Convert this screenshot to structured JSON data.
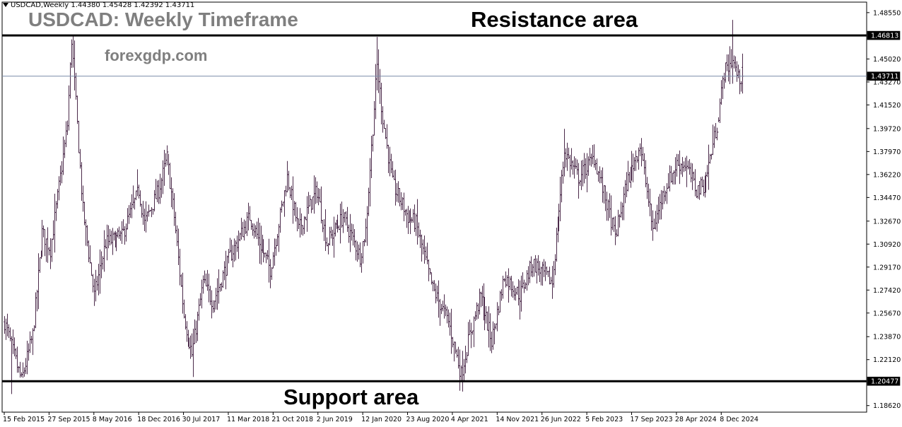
{
  "header": {
    "symbol_info": "USDCAD,Weekly  1.44380 1.45428 1.42392 1.43711",
    "title": "USDCAD: Weekly Timeframe",
    "watermark": "forexgdp.com"
  },
  "annotations": {
    "resistance_label": "Resistance area",
    "support_label": "Support area"
  },
  "colors": {
    "background": "#ffffff",
    "bar": "#4b2a4a",
    "level_line": "#000000",
    "current_price_line": "#7a8aa8"
  },
  "chart_data": {
    "type": "ohlc",
    "title": "USDCAD: Weekly Timeframe",
    "grid": false,
    "y_axis": {
      "ticks": [
        "1.48550",
        "1.45020",
        "1.43270",
        "1.41520",
        "1.39720",
        "1.37970",
        "1.36220",
        "1.34470",
        "1.32670",
        "1.30920",
        "1.29170",
        "1.27420",
        "1.25670",
        "1.23870",
        "1.22120",
        "1.18620"
      ],
      "range": [
        1.1812,
        1.4935
      ]
    },
    "x_axis": {
      "ticks": [
        "15 Feb 2015",
        "27 Sep 2015",
        "8 May 2016",
        "18 Dec 2016",
        "30 Jul 2017",
        "11 Mar 2018",
        "21 Oct 2018",
        "2 Jun 2019",
        "12 Jan 2020",
        "23 Aug 2020",
        "4 Apr 2021",
        "14 Nov 2021",
        "26 Jun 2022",
        "5 Feb 2023",
        "17 Sep 2023",
        "28 Apr 2024",
        "8 Dec 2024"
      ],
      "range": [
        "2015-02-15",
        "2025-03-23"
      ]
    },
    "levels": [
      {
        "price": 1.46813,
        "label": "1.46813",
        "name": "Resistance area"
      },
      {
        "price": 1.20477,
        "label": "1.20477",
        "name": "Support area"
      }
    ],
    "current_price": {
      "price": 1.43711,
      "label": "1.43711"
    },
    "last_bar": {
      "open": 1.4438,
      "high": 1.45428,
      "low": 1.42392,
      "close": 1.43711
    },
    "anchors": [
      [
        "2015-02-15",
        1.25
      ],
      [
        "2015-03-15",
        1.235
      ],
      [
        "2015-05-10",
        1.205
      ],
      [
        "2015-07-05",
        1.24
      ],
      [
        "2015-08-23",
        1.318
      ],
      [
        "2015-10-04",
        1.305
      ],
      [
        "2015-12-27",
        1.4
      ],
      [
        "2016-01-17",
        1.465
      ],
      [
        "2016-03-13",
        1.335
      ],
      [
        "2016-05-08",
        1.27
      ],
      [
        "2016-07-03",
        1.31
      ],
      [
        "2016-09-25",
        1.315
      ],
      [
        "2016-12-18",
        1.35
      ],
      [
        "2017-01-15",
        1.325
      ],
      [
        "2017-03-26",
        1.35
      ],
      [
        "2017-05-07",
        1.375
      ],
      [
        "2017-06-11",
        1.33
      ],
      [
        "2017-07-30",
        1.255
      ],
      [
        "2017-09-10",
        1.225
      ],
      [
        "2017-11-05",
        1.28
      ],
      [
        "2017-12-24",
        1.265
      ],
      [
        "2018-03-18",
        1.3
      ],
      [
        "2018-06-24",
        1.33
      ],
      [
        "2018-08-26",
        1.305
      ],
      [
        "2018-10-07",
        1.29
      ],
      [
        "2018-12-30",
        1.36
      ],
      [
        "2019-02-24",
        1.32
      ],
      [
        "2019-05-26",
        1.35
      ],
      [
        "2019-07-14",
        1.31
      ],
      [
        "2019-10-06",
        1.33
      ],
      [
        "2019-12-29",
        1.3
      ],
      [
        "2020-01-26",
        1.32
      ],
      [
        "2020-03-22",
        1.445
      ],
      [
        "2020-04-19",
        1.405
      ],
      [
        "2020-06-07",
        1.355
      ],
      [
        "2020-08-23",
        1.33
      ],
      [
        "2020-10-04",
        1.325
      ],
      [
        "2020-12-27",
        1.275
      ],
      [
        "2021-03-14",
        1.25
      ],
      [
        "2021-05-16",
        1.21
      ],
      [
        "2021-06-27",
        1.24
      ],
      [
        "2021-08-22",
        1.27
      ],
      [
        "2021-10-17",
        1.235
      ],
      [
        "2021-12-19",
        1.285
      ],
      [
        "2022-03-06",
        1.27
      ],
      [
        "2022-05-08",
        1.295
      ],
      [
        "2022-08-14",
        1.28
      ],
      [
        "2022-10-16",
        1.38
      ],
      [
        "2022-12-25",
        1.36
      ],
      [
        "2023-03-12",
        1.375
      ],
      [
        "2023-05-14",
        1.34
      ],
      [
        "2023-06-25",
        1.315
      ],
      [
        "2023-08-20",
        1.355
      ],
      [
        "2023-10-29",
        1.385
      ],
      [
        "2023-12-31",
        1.32
      ],
      [
        "2024-02-25",
        1.35
      ],
      [
        "2024-04-28",
        1.37
      ],
      [
        "2024-06-09",
        1.37
      ],
      [
        "2024-08-04",
        1.35
      ],
      [
        "2024-09-15",
        1.355
      ],
      [
        "2024-11-17",
        1.4
      ],
      [
        "2024-12-22",
        1.44
      ],
      [
        "2025-02-02",
        1.45
      ],
      [
        "2025-03-02",
        1.435
      ],
      [
        "2025-03-23",
        1.437
      ]
    ],
    "spikes": [
      [
        "2015-03-22",
        1.195
      ],
      [
        "2016-01-24",
        1.468
      ],
      [
        "2017-05-14",
        1.378
      ],
      [
        "2017-09-17",
        1.208
      ],
      [
        "2019-01-06",
        1.365
      ],
      [
        "2020-03-22",
        1.467
      ],
      [
        "2021-05-30",
        1.204
      ],
      [
        "2022-10-16",
        1.397
      ],
      [
        "2023-11-05",
        1.39
      ],
      [
        "2024-11-24",
        1.402
      ],
      [
        "2025-02-02",
        1.48
      ]
    ]
  }
}
